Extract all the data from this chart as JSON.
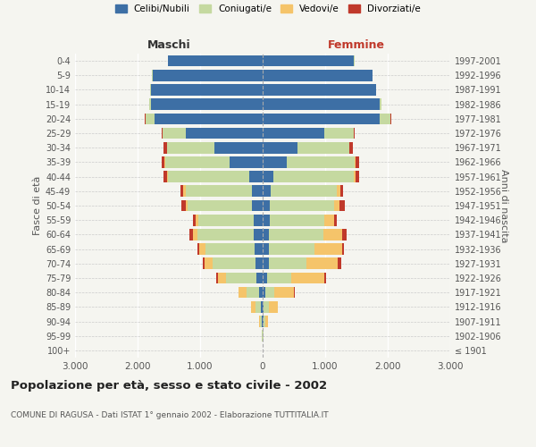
{
  "age_groups": [
    "100+",
    "95-99",
    "90-94",
    "85-89",
    "80-84",
    "75-79",
    "70-74",
    "65-69",
    "60-64",
    "55-59",
    "50-54",
    "45-49",
    "40-44",
    "35-39",
    "30-34",
    "25-29",
    "20-24",
    "15-19",
    "10-14",
    "5-9",
    "0-4"
  ],
  "birth_years": [
    "≤ 1901",
    "1902-1906",
    "1907-1911",
    "1912-1916",
    "1917-1921",
    "1922-1926",
    "1927-1931",
    "1932-1936",
    "1937-1941",
    "1942-1946",
    "1947-1951",
    "1952-1956",
    "1957-1961",
    "1962-1966",
    "1967-1971",
    "1972-1976",
    "1977-1981",
    "1982-1986",
    "1987-1991",
    "1992-1996",
    "1997-2001"
  ],
  "maschi": {
    "celibi": [
      2,
      5,
      15,
      30,
      60,
      100,
      120,
      130,
      140,
      145,
      165,
      175,
      220,
      530,
      770,
      1230,
      1730,
      1790,
      1790,
      1760,
      1510
    ],
    "coniugati": [
      2,
      8,
      30,
      90,
      200,
      490,
      680,
      780,
      900,
      880,
      1030,
      1060,
      1290,
      1030,
      760,
      370,
      140,
      20,
      5,
      5,
      5
    ],
    "vedovi": [
      0,
      3,
      10,
      60,
      120,
      130,
      130,
      100,
      70,
      50,
      40,
      30,
      15,
      10,
      5,
      5,
      5,
      0,
      0,
      0,
      0
    ],
    "divorziati": [
      0,
      0,
      0,
      5,
      10,
      30,
      30,
      30,
      60,
      40,
      60,
      55,
      55,
      50,
      50,
      10,
      5,
      0,
      0,
      0,
      0
    ]
  },
  "femmine": {
    "nubili": [
      2,
      5,
      10,
      20,
      40,
      75,
      100,
      105,
      105,
      110,
      120,
      130,
      170,
      380,
      550,
      980,
      1870,
      1870,
      1810,
      1750,
      1460
    ],
    "coniugate": [
      2,
      8,
      30,
      80,
      150,
      380,
      600,
      720,
      870,
      870,
      1020,
      1060,
      1290,
      1090,
      830,
      470,
      170,
      30,
      5,
      5,
      5
    ],
    "vedove": [
      2,
      5,
      40,
      140,
      310,
      530,
      500,
      450,
      290,
      160,
      90,
      50,
      20,
      15,
      10,
      5,
      5,
      0,
      0,
      0,
      0
    ],
    "divorziate": [
      0,
      0,
      0,
      5,
      10,
      30,
      50,
      30,
      80,
      50,
      80,
      50,
      65,
      55,
      50,
      20,
      10,
      0,
      0,
      0,
      0
    ]
  },
  "colors": {
    "celibi": "#3d6fa5",
    "coniugati": "#c5d9a0",
    "vedovi": "#f5c46a",
    "divorziati": "#c0392b"
  },
  "xlim": 3000,
  "title": "Popolazione per età, sesso e stato civile - 2002",
  "subtitle": "COMUNE DI RAGUSA - Dati ISTAT 1° gennaio 2002 - Elaborazione TUTTITALIA.IT",
  "ylabel_left": "Fasce di età",
  "ylabel_right": "Anni di nascita",
  "xlabel_maschi": "Maschi",
  "xlabel_femmine": "Femmine",
  "legend_labels": [
    "Celibi/Nubili",
    "Coniugati/e",
    "Vedovi/e",
    "Divorziati/e"
  ],
  "bg_color": "#f5f5f0",
  "plot_bg": "#f5f5f0",
  "xticks": [
    -3000,
    -2000,
    -1000,
    0,
    1000,
    2000,
    3000
  ],
  "xlabels": [
    "3.000",
    "2.000",
    "1.000",
    "0",
    "1.000",
    "2.000",
    "3.000"
  ]
}
